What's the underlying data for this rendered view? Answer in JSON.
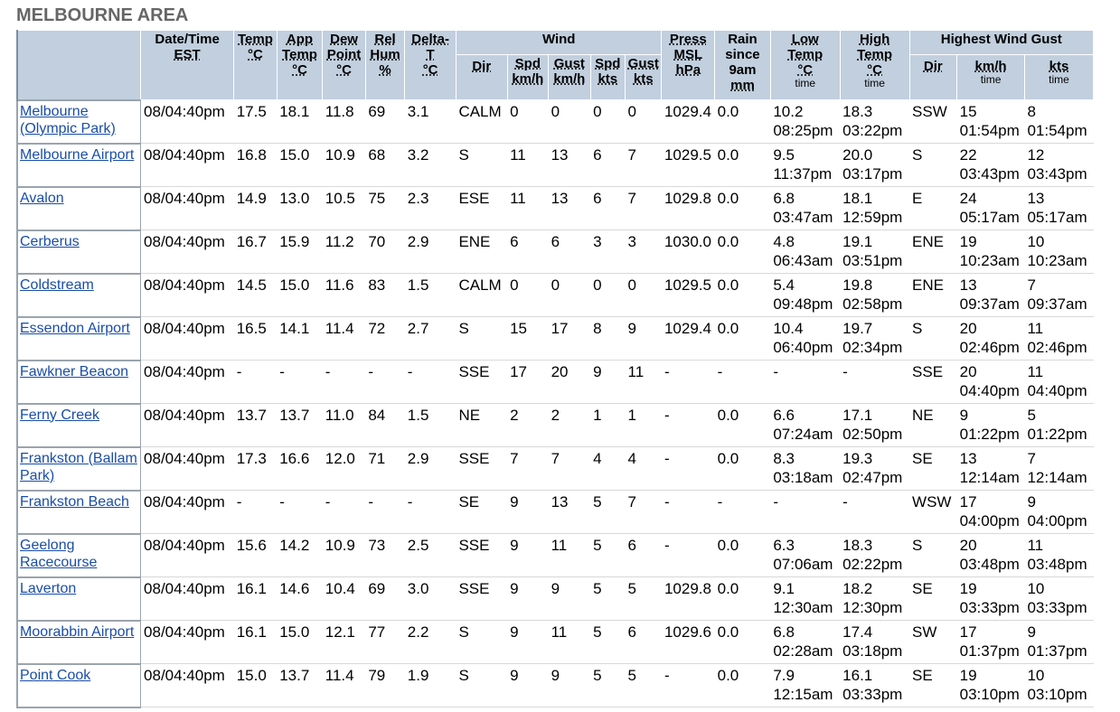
{
  "title": "MELBOURNE AREA",
  "headers": {
    "datetime": "Date/Time",
    "datetime_unit": "EST",
    "temp": "Temp",
    "temp_unit": "°C",
    "app_temp_1": "App",
    "app_temp_2": "Temp",
    "app_temp_unit": "°C",
    "dew_1": "Dew",
    "dew_2": "Point",
    "dew_unit": "°C",
    "rel_1": "Rel",
    "rel_2": "Hum",
    "rel_unit": "%",
    "delta_1": "Delta-",
    "delta_2": "T",
    "delta_unit": "°C",
    "wind": "Wind",
    "wind_dir": "Dir",
    "wind_spd_kmh_1": "Spd",
    "wind_spd_kmh_2": "km/h",
    "wind_gust_kmh_1": "Gust",
    "wind_gust_kmh_2": "km/h",
    "wind_spd_kts_1": "Spd",
    "wind_spd_kts_2": "kts",
    "wind_gust_kts_1": "Gust",
    "wind_gust_kts_2": "kts",
    "press_1": "Press",
    "press_2": "MSL",
    "press_unit": "hPa",
    "rain_1": "Rain",
    "rain_2": "since",
    "rain_3": "9am",
    "rain_unit": "mm",
    "low_1": "Low",
    "low_2": "Temp",
    "low_unit": "°C",
    "low_time": "time",
    "high_1": "High",
    "high_2": "Temp",
    "high_unit": "°C",
    "high_time": "time",
    "gust": "Highest Wind Gust",
    "gust_dir": "Dir",
    "gust_kmh": "km/h",
    "gust_kmh_time": "time",
    "gust_kts": "kts",
    "gust_kts_time": "time"
  },
  "rows": [
    {
      "station": "Melbourne (Olympic Park)",
      "datetime": "08/04:40pm",
      "temp": "17.5",
      "app": "18.1",
      "dew": "11.8",
      "rh": "69",
      "delta": "3.1",
      "dir": "CALM",
      "spd_kmh": "0",
      "gust_kmh": "0",
      "spd_kts": "0",
      "gust_kts": "0",
      "press": "1029.4",
      "rain": "0.0",
      "low": "10.2",
      "low_t": "08:25pm",
      "high": "18.3",
      "high_t": "03:22pm",
      "g_dir": "SSW",
      "g_kmh": "15",
      "g_kmh_t": "01:54pm",
      "g_kts": "8",
      "g_kts_t": "01:54pm"
    },
    {
      "station": "Melbourne Airport",
      "datetime": "08/04:40pm",
      "temp": "16.8",
      "app": "15.0",
      "dew": "10.9",
      "rh": "68",
      "delta": "3.2",
      "dir": "S",
      "spd_kmh": "11",
      "gust_kmh": "13",
      "spd_kts": "6",
      "gust_kts": "7",
      "press": "1029.5",
      "rain": "0.0",
      "low": "9.5",
      "low_t": "11:37pm",
      "high": "20.0",
      "high_t": "03:17pm",
      "g_dir": "S",
      "g_kmh": "22",
      "g_kmh_t": "03:43pm",
      "g_kts": "12",
      "g_kts_t": "03:43pm"
    },
    {
      "station": "Avalon",
      "datetime": "08/04:40pm",
      "temp": "14.9",
      "app": "13.0",
      "dew": "10.5",
      "rh": "75",
      "delta": "2.3",
      "dir": "ESE",
      "spd_kmh": "11",
      "gust_kmh": "13",
      "spd_kts": "6",
      "gust_kts": "7",
      "press": "1029.8",
      "rain": "0.0",
      "low": "6.8",
      "low_t": "03:47am",
      "high": "18.1",
      "high_t": "12:59pm",
      "g_dir": "E",
      "g_kmh": "24",
      "g_kmh_t": "05:17am",
      "g_kts": "13",
      "g_kts_t": "05:17am"
    },
    {
      "station": "Cerberus",
      "datetime": "08/04:40pm",
      "temp": "16.7",
      "app": "15.9",
      "dew": "11.2",
      "rh": "70",
      "delta": "2.9",
      "dir": "ENE",
      "spd_kmh": "6",
      "gust_kmh": "6",
      "spd_kts": "3",
      "gust_kts": "3",
      "press": "1030.0",
      "rain": "0.0",
      "low": "4.8",
      "low_t": "06:43am",
      "high": "19.1",
      "high_t": "03:51pm",
      "g_dir": "ENE",
      "g_kmh": "19",
      "g_kmh_t": "10:23am",
      "g_kts": "10",
      "g_kts_t": "10:23am"
    },
    {
      "station": "Coldstream",
      "datetime": "08/04:40pm",
      "temp": "14.5",
      "app": "15.0",
      "dew": "11.6",
      "rh": "83",
      "delta": "1.5",
      "dir": "CALM",
      "spd_kmh": "0",
      "gust_kmh": "0",
      "spd_kts": "0",
      "gust_kts": "0",
      "press": "1029.5",
      "rain": "0.0",
      "low": "5.4",
      "low_t": "09:48pm",
      "high": "19.8",
      "high_t": "02:58pm",
      "g_dir": "ENE",
      "g_kmh": "13",
      "g_kmh_t": "09:37am",
      "g_kts": "7",
      "g_kts_t": "09:37am"
    },
    {
      "station": "Essendon Airport",
      "datetime": "08/04:40pm",
      "temp": "16.5",
      "app": "14.1",
      "dew": "11.4",
      "rh": "72",
      "delta": "2.7",
      "dir": "S",
      "spd_kmh": "15",
      "gust_kmh": "17",
      "spd_kts": "8",
      "gust_kts": "9",
      "press": "1029.4",
      "rain": "0.0",
      "low": "10.4",
      "low_t": "06:40pm",
      "high": "19.7",
      "high_t": "02:34pm",
      "g_dir": "S",
      "g_kmh": "20",
      "g_kmh_t": "02:46pm",
      "g_kts": "11",
      "g_kts_t": "02:46pm"
    },
    {
      "station": "Fawkner Beacon",
      "datetime": "08/04:40pm",
      "temp": "-",
      "app": "-",
      "dew": "-",
      "rh": "-",
      "delta": "-",
      "dir": "SSE",
      "spd_kmh": "17",
      "gust_kmh": "20",
      "spd_kts": "9",
      "gust_kts": "11",
      "press": "-",
      "rain": "-",
      "low": "-",
      "low_t": "",
      "high": "-",
      "high_t": "",
      "g_dir": "SSE",
      "g_kmh": "20",
      "g_kmh_t": "04:40pm",
      "g_kts": "11",
      "g_kts_t": "04:40pm"
    },
    {
      "station": "Ferny Creek",
      "datetime": "08/04:40pm",
      "temp": "13.7",
      "app": "13.7",
      "dew": "11.0",
      "rh": "84",
      "delta": "1.5",
      "dir": "NE",
      "spd_kmh": "2",
      "gust_kmh": "2",
      "spd_kts": "1",
      "gust_kts": "1",
      "press": "-",
      "rain": "0.0",
      "low": "6.6",
      "low_t": "07:24am",
      "high": "17.1",
      "high_t": "02:50pm",
      "g_dir": "NE",
      "g_kmh": "9",
      "g_kmh_t": "01:22pm",
      "g_kts": "5",
      "g_kts_t": "01:22pm"
    },
    {
      "station": "Frankston (Ballam Park)",
      "datetime": "08/04:40pm",
      "temp": "17.3",
      "app": "16.6",
      "dew": "12.0",
      "rh": "71",
      "delta": "2.9",
      "dir": "SSE",
      "spd_kmh": "7",
      "gust_kmh": "7",
      "spd_kts": "4",
      "gust_kts": "4",
      "press": "-",
      "rain": "0.0",
      "low": "8.3",
      "low_t": "03:18am",
      "high": "19.3",
      "high_t": "02:47pm",
      "g_dir": "SE",
      "g_kmh": "13",
      "g_kmh_t": "12:14am",
      "g_kts": "7",
      "g_kts_t": "12:14am"
    },
    {
      "station": "Frankston Beach",
      "datetime": "08/04:40pm",
      "temp": "-",
      "app": "-",
      "dew": "-",
      "rh": "-",
      "delta": "-",
      "dir": "SE",
      "spd_kmh": "9",
      "gust_kmh": "13",
      "spd_kts": "5",
      "gust_kts": "7",
      "press": "-",
      "rain": "-",
      "low": "-",
      "low_t": "",
      "high": "-",
      "high_t": "",
      "g_dir": "WSW",
      "g_kmh": "17",
      "g_kmh_t": "04:00pm",
      "g_kts": "9",
      "g_kts_t": "04:00pm"
    },
    {
      "station": "Geelong Racecourse",
      "datetime": "08/04:40pm",
      "temp": "15.6",
      "app": "14.2",
      "dew": "10.9",
      "rh": "73",
      "delta": "2.5",
      "dir": "SSE",
      "spd_kmh": "9",
      "gust_kmh": "11",
      "spd_kts": "5",
      "gust_kts": "6",
      "press": "-",
      "rain": "0.0",
      "low": "6.3",
      "low_t": "07:06am",
      "high": "18.3",
      "high_t": "02:22pm",
      "g_dir": "S",
      "g_kmh": "20",
      "g_kmh_t": "03:48pm",
      "g_kts": "11",
      "g_kts_t": "03:48pm"
    },
    {
      "station": "Laverton",
      "datetime": "08/04:40pm",
      "temp": "16.1",
      "app": "14.6",
      "dew": "10.4",
      "rh": "69",
      "delta": "3.0",
      "dir": "SSE",
      "spd_kmh": "9",
      "gust_kmh": "9",
      "spd_kts": "5",
      "gust_kts": "5",
      "press": "1029.8",
      "rain": "0.0",
      "low": "9.1",
      "low_t": "12:30am",
      "high": "18.2",
      "high_t": "12:30pm",
      "g_dir": "SE",
      "g_kmh": "19",
      "g_kmh_t": "03:33pm",
      "g_kts": "10",
      "g_kts_t": "03:33pm"
    },
    {
      "station": "Moorabbin Airport",
      "datetime": "08/04:40pm",
      "temp": "16.1",
      "app": "15.0",
      "dew": "12.1",
      "rh": "77",
      "delta": "2.2",
      "dir": "S",
      "spd_kmh": "9",
      "gust_kmh": "11",
      "spd_kts": "5",
      "gust_kts": "6",
      "press": "1029.6",
      "rain": "0.0",
      "low": "6.8",
      "low_t": "02:28am",
      "high": "17.4",
      "high_t": "03:18pm",
      "g_dir": "SW",
      "g_kmh": "17",
      "g_kmh_t": "01:37pm",
      "g_kts": "9",
      "g_kts_t": "01:37pm"
    },
    {
      "station": "Point Cook",
      "datetime": "08/04:40pm",
      "temp": "15.0",
      "app": "13.7",
      "dew": "11.4",
      "rh": "79",
      "delta": "1.9",
      "dir": "S",
      "spd_kmh": "9",
      "gust_kmh": "9",
      "spd_kts": "5",
      "gust_kts": "5",
      "press": "-",
      "rain": "0.0",
      "low": "7.9",
      "low_t": "12:15am",
      "high": "16.1",
      "high_t": "03:33pm",
      "g_dir": "SE",
      "g_kmh": "19",
      "g_kmh_t": "03:10pm",
      "g_kts": "10",
      "g_kts_t": "03:10pm"
    }
  ]
}
